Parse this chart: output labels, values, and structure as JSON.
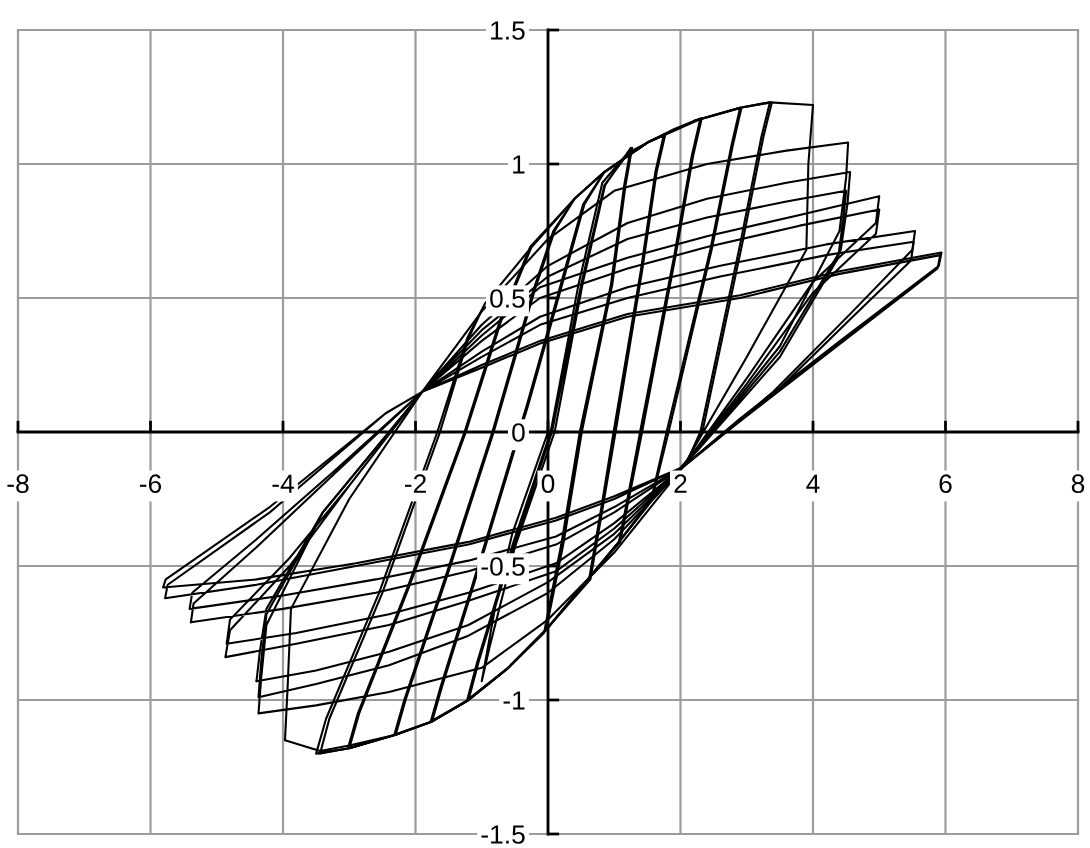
{
  "chart_data": {
    "type": "line",
    "xlim": [
      -8,
      8
    ],
    "ylim": [
      -1.5,
      1.5
    ],
    "xticks": [
      -8,
      -6,
      -4,
      -2,
      0,
      2,
      4,
      6,
      8
    ],
    "yticks": [
      -1.5,
      -1,
      -0.5,
      0,
      0.5,
      1,
      1.5
    ],
    "grid": true,
    "series": [
      {
        "color": "#000000",
        "x": [
          0,
          -0.54,
          -0.78,
          -1.0,
          -0.88,
          -0.5,
          0.1,
          0.52,
          0.86,
          1.25,
          1.15,
          0.95,
          0.48,
          0.2,
          -0.06,
          -0.6,
          -1.2,
          -1.05,
          -0.5,
          0.06,
          0.5,
          0.85,
          1.27,
          1.17,
          0.97,
          0.51,
          0.23,
          -0.03,
          -0.6,
          -1.22,
          -1.07,
          -0.52,
          0.04,
          0.46,
          0.82,
          1.2,
          1.5,
          1.75,
          1.62,
          1.4,
          0.99,
          0.78,
          0.62,
          0,
          -0.6,
          -1.2,
          -1.75,
          -1.6,
          -1.12,
          -0.3,
          0.1,
          0.55,
          0.85,
          1.5,
          1.77,
          1.64,
          1.42,
          1.02,
          0.8,
          0.64,
          0,
          -0.6,
          -1.2,
          -1.77
        ],
        "values": [
          0,
          -0.38,
          -0.63,
          -0.93,
          -0.8,
          -0.43,
          0,
          0.55,
          0.92,
          1.06,
          0.92,
          0.55,
          0,
          -0.42,
          -0.75,
          -0.88,
          -1.0,
          -0.86,
          -0.41,
          0,
          0.55,
          0.92,
          1.06,
          0.92,
          0.55,
          0,
          -0.42,
          -0.74,
          -0.88,
          -1.0,
          -0.86,
          -0.41,
          0,
          0.55,
          0.93,
          1.04,
          1.08,
          1.11,
          0.97,
          0.6,
          0,
          -0.32,
          -0.55,
          -0.73,
          -0.88,
          -1.0,
          -1.08,
          -0.95,
          -0.57,
          0.1,
          0.45,
          0.85,
          0.97,
          1.08,
          1.11,
          0.97,
          0.6,
          0,
          -0.32,
          -0.55,
          -0.73,
          -0.88,
          -1.0,
          -1.08
        ]
      },
      {
        "color": "#000000",
        "x": [
          -1.77,
          -1.62,
          -1.14,
          -0.32,
          0.08,
          0.53,
          0.85,
          1.5,
          1.9,
          2.3,
          2.17,
          1.9,
          1.39,
          1.2,
          1.07,
          0.5,
          0,
          -0.6,
          -1.2,
          -1.75,
          -2.3,
          -2.15,
          -1.5,
          -0.82,
          -0.2,
          0.1,
          0.4,
          0.85,
          1.5,
          2.32,
          2.19,
          1.92,
          1.42,
          1.22,
          1.09,
          0.5,
          0,
          -0.6,
          -1.2,
          -1.75,
          -2.32,
          -2.17,
          -1.52,
          -0.84,
          -0.22,
          0.08,
          0.4,
          0.85,
          1.5,
          2.2,
          2.9,
          2.77,
          2.45,
          1.79,
          1.55,
          1.07,
          0.5,
          0,
          -0.6,
          -1.2,
          -1.75,
          -2.3,
          -3.0
        ],
        "values": [
          -1.08,
          -0.95,
          -0.57,
          0.1,
          0.45,
          0.85,
          0.97,
          1.08,
          1.13,
          1.17,
          1.03,
          0.65,
          0,
          -0.25,
          -0.41,
          -0.58,
          -0.73,
          -0.88,
          -1.0,
          -1.08,
          -1.13,
          -1.0,
          -0.52,
          0,
          0.53,
          0.75,
          0.87,
          0.97,
          1.08,
          1.17,
          1.03,
          0.65,
          0,
          -0.25,
          -0.41,
          -0.58,
          -0.73,
          -0.88,
          -1.0,
          -1.08,
          -1.13,
          -1.0,
          -0.52,
          0,
          0.53,
          0.75,
          0.87,
          0.97,
          1.08,
          1.16,
          1.21,
          1.07,
          0.68,
          0,
          -0.26,
          -0.41,
          -0.58,
          -0.73,
          -0.88,
          -1.0,
          -1.08,
          -1.13,
          -1.18
        ]
      },
      {
        "color": "#000000",
        "x": [
          -3.0,
          -2.85,
          -2.1,
          -1.24,
          -0.7,
          -0.25,
          0.4,
          0.85,
          1.5,
          2.2,
          2.92,
          2.79,
          2.47,
          1.82,
          1.57,
          1.07,
          0.5,
          0,
          -0.6,
          -1.2,
          -1.75,
          -2.3,
          -3.02,
          -2.87,
          -2.12,
          -1.26,
          -0.72,
          -0.27,
          0.4,
          0.85,
          1.5,
          2.2,
          2.9,
          3.35,
          3.22,
          2.9,
          2.3,
          2.1,
          1.55,
          1.07,
          0.5,
          0,
          -0.6,
          -1.2,
          -1.75,
          -2.3,
          -3.0,
          -3.44
        ],
        "values": [
          -1.18,
          -1.05,
          -0.58,
          0,
          0.42,
          0.69,
          0.87,
          0.97,
          1.08,
          1.16,
          1.21,
          1.07,
          0.68,
          0,
          -0.25,
          -0.41,
          -0.58,
          -0.73,
          -0.88,
          -1.0,
          -1.08,
          -1.13,
          -1.18,
          -1.05,
          -0.58,
          0,
          0.42,
          0.69,
          0.87,
          0.97,
          1.08,
          1.16,
          1.21,
          1.23,
          1.1,
          0.7,
          0,
          -0.11,
          -0.26,
          -0.41,
          -0.58,
          -0.73,
          -0.88,
          -1.0,
          -1.08,
          -1.13,
          -1.18,
          -1.2
        ]
      },
      {
        "color": "#000000",
        "x": [
          -3.44,
          -3.3,
          -2.5,
          -1.63,
          -1.2,
          -0.95,
          -0.25,
          0.4,
          0.85,
          1.5,
          2.2,
          2.9,
          3.38,
          3.25,
          2.93,
          2.33,
          2.12,
          1.55,
          1.07,
          0.5,
          0,
          -0.6,
          -1.2,
          -1.75,
          -2.3,
          -3.0,
          -3.5,
          -3.35,
          -2.55,
          -1.67,
          -1.22,
          -0.95,
          -0.25,
          0.4,
          0.85,
          1.5,
          2.2,
          2.9,
          3.35,
          4.0,
          3.93,
          3.9,
          3.0,
          2.04,
          1.55,
          1.07,
          0.5,
          0,
          -0.6,
          -1.2,
          -1.75,
          -2.3,
          -3.0,
          -3.44,
          -3.97
        ],
        "values": [
          -1.2,
          -1.07,
          -0.6,
          0,
          0.35,
          0.48,
          0.69,
          0.87,
          0.97,
          1.08,
          1.16,
          1.21,
          1.23,
          1.1,
          0.7,
          0,
          -0.1,
          -0.26,
          -0.41,
          -0.58,
          -0.73,
          -0.88,
          -1.0,
          -1.08,
          -1.13,
          -1.18,
          -1.2,
          -1.07,
          -0.6,
          0,
          0.35,
          0.48,
          0.69,
          0.87,
          0.97,
          1.08,
          1.16,
          1.21,
          1.23,
          1.22,
          1.0,
          0.68,
          0.28,
          -0.13,
          -0.26,
          -0.41,
          -0.58,
          -0.73,
          -0.88,
          -1.0,
          -1.08,
          -1.13,
          -1.17,
          -1.19,
          -1.15
        ]
      },
      {
        "color": "#000000",
        "x": [
          -3.97,
          -3.93,
          -3.88,
          -3.0,
          -1.9,
          -1.0,
          0,
          1.0,
          2.4,
          3.6,
          4.53,
          4.5,
          4.4,
          3.5,
          2.04,
          1.0,
          0,
          -1.0,
          -2.4,
          -3.5,
          -4.37,
          -4.33,
          -4.25,
          -3.4,
          -1.9,
          -1.0,
          0,
          1.2,
          2.4,
          3.6,
          4.56,
          4.52,
          4.42,
          3.5,
          2.04,
          1.0,
          0,
          -1.2,
          -2.4,
          -3.5,
          -4.37,
          -4.33,
          -4.25,
          -3.4,
          -1.9,
          -1.0,
          0,
          1.2,
          2.4,
          3.6,
          4.5,
          4.46,
          4.38,
          3.5,
          2.04,
          1.0,
          0,
          -1.2,
          -2.4,
          -3.5,
          -4.4
        ],
        "values": [
          -1.15,
          -0.95,
          -0.66,
          -0.25,
          0.15,
          0.45,
          0.72,
          0.9,
          1.0,
          1.05,
          1.08,
          0.95,
          0.75,
          0.32,
          -0.13,
          -0.45,
          -0.7,
          -0.88,
          -0.97,
          -1.02,
          -1.05,
          -0.92,
          -0.72,
          -0.3,
          0.15,
          0.4,
          0.62,
          0.78,
          0.87,
          0.93,
          0.97,
          0.85,
          0.68,
          0.3,
          -0.13,
          -0.4,
          -0.6,
          -0.76,
          -0.87,
          -0.94,
          -0.99,
          -0.86,
          -0.68,
          -0.3,
          0.15,
          0.38,
          0.58,
          0.72,
          0.8,
          0.86,
          0.9,
          0.8,
          0.65,
          0.28,
          -0.13,
          -0.38,
          -0.56,
          -0.72,
          -0.82,
          -0.89,
          -0.93
        ]
      },
      {
        "color": "#000000",
        "x": [
          -4.4,
          -4.35,
          -4.25,
          -3.4,
          -1.9,
          -1.0,
          -0.12,
          1.2,
          2.4,
          3.8,
          5.0,
          4.95,
          4.0,
          3.0,
          2.04,
          1.0,
          0.12,
          -1.2,
          -2.4,
          -3.8,
          -4.87,
          -4.8,
          -3.9,
          -3.0,
          -1.9,
          -1.0,
          -0.12,
          1.2,
          2.4,
          3.8,
          5.0,
          4.95,
          4.0,
          3.0,
          2.04,
          1.0,
          0.12,
          -1.2,
          -2.4,
          -3.8,
          -4.85,
          -4.8,
          -3.9,
          -3.0,
          -1.9,
          -1.0,
          -0.12,
          1.2,
          2.6,
          4.2,
          5.54,
          5.5,
          4.6,
          3.4,
          2.04,
          1.0,
          0.12,
          -1.2,
          -2.6,
          -4.0,
          -5.39
        ],
        "values": [
          -0.93,
          -0.82,
          -0.66,
          -0.3,
          0.15,
          0.36,
          0.54,
          0.65,
          0.73,
          0.81,
          0.88,
          0.78,
          0.56,
          0.2,
          -0.13,
          -0.36,
          -0.52,
          -0.63,
          -0.72,
          -0.79,
          -0.84,
          -0.74,
          -0.5,
          -0.2,
          0.15,
          0.34,
          0.5,
          0.61,
          0.69,
          0.77,
          0.83,
          0.74,
          0.52,
          0.18,
          -0.13,
          -0.34,
          -0.49,
          -0.6,
          -0.68,
          -0.75,
          -0.79,
          -0.7,
          -0.47,
          -0.2,
          0.15,
          0.3,
          0.43,
          0.54,
          0.62,
          0.7,
          0.75,
          0.68,
          0.45,
          0.15,
          -0.13,
          -0.3,
          -0.42,
          -0.52,
          -0.6,
          -0.66,
          -0.71
        ]
      },
      {
        "color": "#000000",
        "x": [
          -5.39,
          -5.35,
          -4.4,
          -3.2,
          -1.9,
          -1.0,
          -0.12,
          1.2,
          2.6,
          4.2,
          5.52,
          5.48,
          4.6,
          3.4,
          2.04,
          1.0,
          0.12,
          -1.2,
          -2.6,
          -4.0,
          -5.41,
          -5.37,
          -4.4,
          -3.2,
          -1.9,
          -1.0,
          -0.12,
          1.2,
          2.9,
          4.4,
          5.94,
          5.9,
          4.41,
          2.9,
          2.04,
          1.0,
          0.12,
          -1.2,
          -2.9,
          -4.4,
          -5.78,
          -5.74,
          -4.2,
          -2.45,
          -1.9,
          -1.0,
          -0.12,
          1.2,
          2.9,
          4.4,
          5.92,
          5.88,
          4.41,
          2.9,
          2.04,
          1.0,
          0.12,
          -1.2,
          -2.9,
          -4.4,
          -5.81,
          -5.77,
          -4.2,
          -2.45
        ],
        "values": [
          -0.71,
          -0.64,
          -0.43,
          -0.15,
          0.15,
          0.28,
          0.4,
          0.5,
          0.58,
          0.66,
          0.71,
          0.64,
          0.43,
          0.14,
          -0.13,
          -0.28,
          -0.39,
          -0.48,
          -0.55,
          -0.61,
          -0.66,
          -0.6,
          -0.4,
          -0.14,
          0.15,
          0.25,
          0.34,
          0.44,
          0.51,
          0.6,
          0.67,
          0.62,
          0.34,
          0.05,
          -0.13,
          -0.25,
          -0.33,
          -0.42,
          -0.5,
          -0.57,
          -0.62,
          -0.57,
          -0.3,
          0.07,
          0.15,
          0.24,
          0.33,
          0.43,
          0.5,
          0.59,
          0.66,
          0.61,
          0.33,
          0.04,
          -0.13,
          -0.24,
          -0.32,
          -0.41,
          -0.49,
          -0.55,
          -0.58,
          -0.55,
          -0.28,
          0.07
        ]
      }
    ]
  }
}
